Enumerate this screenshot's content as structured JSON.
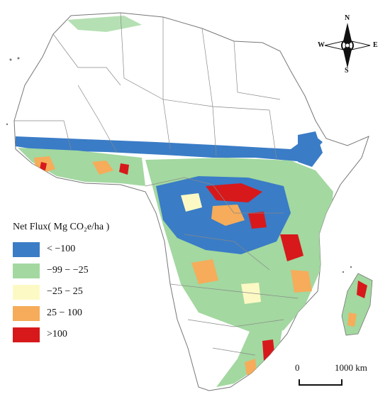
{
  "legend": {
    "title": "Net Flux( Mg CO₂e/ha )",
    "items": [
      {
        "label": "< −100",
        "color": "#3a7cc6"
      },
      {
        "label": "−99 − −25",
        "color": "#a3d8a0"
      },
      {
        "label": "−25 − 25",
        "color": "#fdf9c4"
      },
      {
        "label": "25 − 100",
        "color": "#f6ac5a"
      },
      {
        "label": ">100",
        "color": "#d7191c"
      }
    ]
  },
  "compass": {
    "north": "N",
    "south": "S",
    "east": "E",
    "west": "W"
  },
  "scale_bar": {
    "start_label": "0",
    "end_label": "1000 km"
  }
}
